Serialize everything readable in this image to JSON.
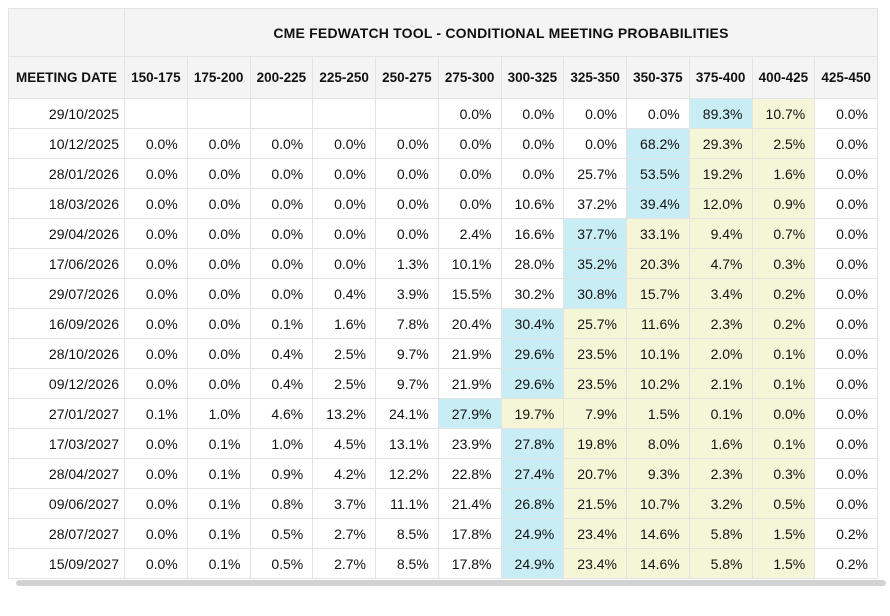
{
  "colors": {
    "highlight_blue": "#c9edf5",
    "highlight_yellow": "#f5f5d8",
    "header_bg": "#f4f4f4",
    "border": "#e3e3e3",
    "bottom_bar": "#d2d2d2"
  },
  "chart_data": {
    "type": "table",
    "title": "CME FEDWATCH TOOL - CONDITIONAL MEETING PROBABILITIES",
    "row_header": "MEETING DATE",
    "columns": [
      "150-175",
      "175-200",
      "200-225",
      "225-250",
      "250-275",
      "275-300",
      "300-325",
      "325-350",
      "350-375",
      "375-400",
      "400-425",
      "425-450"
    ],
    "rows": [
      {
        "date": "29/10/2025",
        "values": [
          "",
          "",
          "",
          "",
          "",
          "0.0%",
          "0.0%",
          "0.0%",
          "0.0%",
          "89.3%",
          "10.7%",
          "0.0%"
        ],
        "highlight": [
          "",
          "",
          "",
          "",
          "",
          "",
          "",
          "",
          "",
          "blue",
          "yellow",
          ""
        ]
      },
      {
        "date": "10/12/2025",
        "values": [
          "0.0%",
          "0.0%",
          "0.0%",
          "0.0%",
          "0.0%",
          "0.0%",
          "0.0%",
          "0.0%",
          "68.2%",
          "29.3%",
          "2.5%",
          "0.0%"
        ],
        "highlight": [
          "",
          "",
          "",
          "",
          "",
          "",
          "",
          "",
          "blue",
          "yellow",
          "yellow",
          ""
        ]
      },
      {
        "date": "28/01/2026",
        "values": [
          "0.0%",
          "0.0%",
          "0.0%",
          "0.0%",
          "0.0%",
          "0.0%",
          "0.0%",
          "25.7%",
          "53.5%",
          "19.2%",
          "1.6%",
          "0.0%"
        ],
        "highlight": [
          "",
          "",
          "",
          "",
          "",
          "",
          "",
          "",
          "blue",
          "yellow",
          "yellow",
          ""
        ]
      },
      {
        "date": "18/03/2026",
        "values": [
          "0.0%",
          "0.0%",
          "0.0%",
          "0.0%",
          "0.0%",
          "0.0%",
          "10.6%",
          "37.2%",
          "39.4%",
          "12.0%",
          "0.9%",
          "0.0%"
        ],
        "highlight": [
          "",
          "",
          "",
          "",
          "",
          "",
          "",
          "",
          "blue",
          "yellow",
          "yellow",
          ""
        ]
      },
      {
        "date": "29/04/2026",
        "values": [
          "0.0%",
          "0.0%",
          "0.0%",
          "0.0%",
          "0.0%",
          "2.4%",
          "16.6%",
          "37.7%",
          "33.1%",
          "9.4%",
          "0.7%",
          "0.0%"
        ],
        "highlight": [
          "",
          "",
          "",
          "",
          "",
          "",
          "",
          "blue",
          "yellow",
          "yellow",
          "yellow",
          ""
        ]
      },
      {
        "date": "17/06/2026",
        "values": [
          "0.0%",
          "0.0%",
          "0.0%",
          "0.0%",
          "1.3%",
          "10.1%",
          "28.0%",
          "35.2%",
          "20.3%",
          "4.7%",
          "0.3%",
          "0.0%"
        ],
        "highlight": [
          "",
          "",
          "",
          "",
          "",
          "",
          "",
          "blue",
          "yellow",
          "yellow",
          "yellow",
          ""
        ]
      },
      {
        "date": "29/07/2026",
        "values": [
          "0.0%",
          "0.0%",
          "0.0%",
          "0.4%",
          "3.9%",
          "15.5%",
          "30.2%",
          "30.8%",
          "15.7%",
          "3.4%",
          "0.2%",
          "0.0%"
        ],
        "highlight": [
          "",
          "",
          "",
          "",
          "",
          "",
          "",
          "blue",
          "yellow",
          "yellow",
          "yellow",
          ""
        ]
      },
      {
        "date": "16/09/2026",
        "values": [
          "0.0%",
          "0.0%",
          "0.1%",
          "1.6%",
          "7.8%",
          "20.4%",
          "30.4%",
          "25.7%",
          "11.6%",
          "2.3%",
          "0.2%",
          "0.0%"
        ],
        "highlight": [
          "",
          "",
          "",
          "",
          "",
          "",
          "blue",
          "yellow",
          "yellow",
          "yellow",
          "yellow",
          ""
        ]
      },
      {
        "date": "28/10/2026",
        "values": [
          "0.0%",
          "0.0%",
          "0.4%",
          "2.5%",
          "9.7%",
          "21.9%",
          "29.6%",
          "23.5%",
          "10.1%",
          "2.0%",
          "0.1%",
          "0.0%"
        ],
        "highlight": [
          "",
          "",
          "",
          "",
          "",
          "",
          "blue",
          "yellow",
          "yellow",
          "yellow",
          "yellow",
          ""
        ]
      },
      {
        "date": "09/12/2026",
        "values": [
          "0.0%",
          "0.0%",
          "0.4%",
          "2.5%",
          "9.7%",
          "21.9%",
          "29.6%",
          "23.5%",
          "10.2%",
          "2.1%",
          "0.1%",
          "0.0%"
        ],
        "highlight": [
          "",
          "",
          "",
          "",
          "",
          "",
          "blue",
          "yellow",
          "yellow",
          "yellow",
          "yellow",
          ""
        ]
      },
      {
        "date": "27/01/2027",
        "values": [
          "0.1%",
          "1.0%",
          "4.6%",
          "13.2%",
          "24.1%",
          "27.9%",
          "19.7%",
          "7.9%",
          "1.5%",
          "0.1%",
          "0.0%",
          "0.0%"
        ],
        "highlight": [
          "",
          "",
          "",
          "",
          "",
          "blue",
          "yellow",
          "yellow",
          "yellow",
          "yellow",
          "yellow",
          ""
        ]
      },
      {
        "date": "17/03/2027",
        "values": [
          "0.0%",
          "0.1%",
          "1.0%",
          "4.5%",
          "13.1%",
          "23.9%",
          "27.8%",
          "19.8%",
          "8.0%",
          "1.6%",
          "0.1%",
          "0.0%"
        ],
        "highlight": [
          "",
          "",
          "",
          "",
          "",
          "",
          "blue",
          "yellow",
          "yellow",
          "yellow",
          "yellow",
          ""
        ]
      },
      {
        "date": "28/04/2027",
        "values": [
          "0.0%",
          "0.1%",
          "0.9%",
          "4.2%",
          "12.2%",
          "22.8%",
          "27.4%",
          "20.7%",
          "9.3%",
          "2.3%",
          "0.3%",
          "0.0%"
        ],
        "highlight": [
          "",
          "",
          "",
          "",
          "",
          "",
          "blue",
          "yellow",
          "yellow",
          "yellow",
          "yellow",
          ""
        ]
      },
      {
        "date": "09/06/2027",
        "values": [
          "0.0%",
          "0.1%",
          "0.8%",
          "3.7%",
          "11.1%",
          "21.4%",
          "26.8%",
          "21.5%",
          "10.7%",
          "3.2%",
          "0.5%",
          "0.0%"
        ],
        "highlight": [
          "",
          "",
          "",
          "",
          "",
          "",
          "blue",
          "yellow",
          "yellow",
          "yellow",
          "yellow",
          ""
        ]
      },
      {
        "date": "28/07/2027",
        "values": [
          "0.0%",
          "0.1%",
          "0.5%",
          "2.7%",
          "8.5%",
          "17.8%",
          "24.9%",
          "23.4%",
          "14.6%",
          "5.8%",
          "1.5%",
          "0.2%"
        ],
        "highlight": [
          "",
          "",
          "",
          "",
          "",
          "",
          "blue",
          "yellow",
          "yellow",
          "yellow",
          "yellow",
          ""
        ]
      },
      {
        "date": "15/09/2027",
        "values": [
          "0.0%",
          "0.1%",
          "0.5%",
          "2.7%",
          "8.5%",
          "17.8%",
          "24.9%",
          "23.4%",
          "14.6%",
          "5.8%",
          "1.5%",
          "0.2%"
        ],
        "highlight": [
          "",
          "",
          "",
          "",
          "",
          "",
          "blue",
          "yellow",
          "yellow",
          "yellow",
          "yellow",
          ""
        ]
      }
    ]
  }
}
